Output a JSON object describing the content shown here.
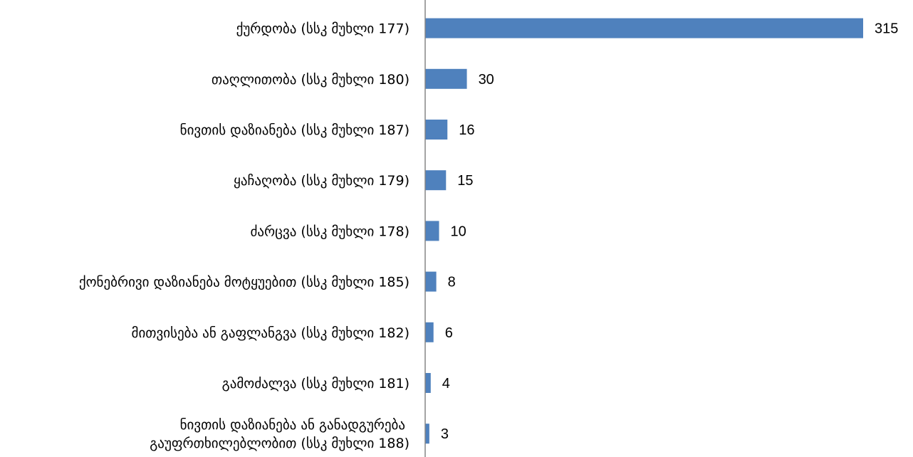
{
  "chart_data": {
    "type": "bar",
    "orientation": "horizontal",
    "categories": [
      [
        "ქურდობა (სსკ მუხლი 177)"
      ],
      [
        "თაღლითობა (სსკ მუხლი 180)"
      ],
      [
        "ნივთის დაზიანება (სსკ მუხლი 187)"
      ],
      [
        "ყაჩაღობა (სსკ მუხლი 179)"
      ],
      [
        "ძარცვა (სსკ მუხლი 178)"
      ],
      [
        "ქონებრივი დაზიანება მოტყუებით (სსკ მუხლი 185)"
      ],
      [
        "მითვისება ან გაფლანგვა (სსკ მუხლი 182)"
      ],
      [
        "გამოძალვა (სსკ მუხლი 181)"
      ],
      [
        "ნივთის დაზიანება ან განადგურება",
        "გაუფრთხილებლობით  (სსკ  მუხლი 188)"
      ]
    ],
    "values": [
      315,
      30,
      16,
      15,
      10,
      8,
      6,
      4,
      3
    ],
    "data_labels": [
      "315",
      "30",
      "16",
      "15",
      "10",
      "8",
      "6",
      "4",
      "3"
    ],
    "bar_color": "#4f81bd",
    "axis_color": "#868686",
    "xlim": [
      0,
      315
    ],
    "grid": false,
    "legend": "none"
  }
}
